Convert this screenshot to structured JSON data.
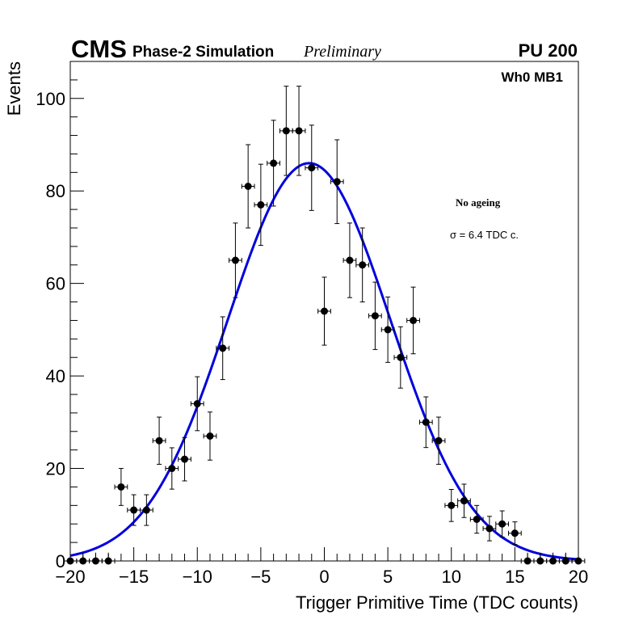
{
  "header": {
    "experiment": "CMS",
    "subtitle": "Phase-2 Simulation",
    "status": "Preliminary",
    "pileup": "PU 200"
  },
  "annotations": {
    "station": "Wh0 MB1",
    "ageing": "No ageing",
    "sigma": "σ = 6.4 TDC c."
  },
  "chart_data": {
    "type": "scatter",
    "title": "",
    "xlabel": "Trigger Primitive Time (TDC counts)",
    "ylabel": "Events",
    "xlim": [
      -20,
      20
    ],
    "ylim": [
      0,
      108
    ],
    "xticks": [
      -20,
      -15,
      -10,
      -5,
      0,
      5,
      10,
      15,
      20
    ],
    "xtick_labels": [
      "−20",
      "−15",
      "−10",
      "−5",
      "0",
      "5",
      "10",
      "15",
      "20"
    ],
    "yticks": [
      0,
      20,
      40,
      60,
      80,
      100
    ],
    "ytick_labels": [
      "0",
      "20",
      "40",
      "60",
      "80",
      "100"
    ],
    "colors": {
      "data": "#000000",
      "fit": "#0000dd",
      "frame": "#000000"
    },
    "series": [
      {
        "name": "Simulation",
        "kind": "points-with-errors",
        "x": [
          -20,
          -19,
          -18,
          -17,
          -16,
          -15,
          -14,
          -13,
          -12,
          -11,
          -10,
          -9,
          -8,
          -7,
          -6,
          -5,
          -4,
          -3,
          -2,
          -1,
          0,
          1,
          2,
          3,
          4,
          5,
          6,
          7,
          8,
          9,
          10,
          11,
          12,
          13,
          14,
          15,
          16,
          17,
          18,
          19,
          20
        ],
        "y": [
          0,
          0,
          0,
          0,
          16,
          11,
          11,
          26,
          20,
          22,
          34,
          27,
          46,
          65,
          81,
          77,
          86,
          93,
          93,
          85,
          54,
          82,
          65,
          64,
          53,
          50,
          44,
          52,
          30,
          26,
          12,
          13,
          9,
          7,
          8,
          6,
          0,
          0,
          0,
          0,
          0
        ]
      },
      {
        "name": "Gaussian fit",
        "kind": "line",
        "amplitude": 86,
        "mean": -1.2,
        "sigma": 6.4,
        "x_range": [
          -20,
          20
        ]
      }
    ]
  }
}
